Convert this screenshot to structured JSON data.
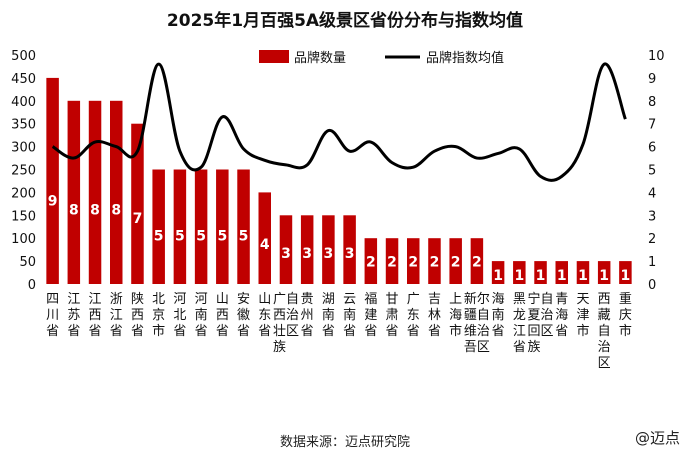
{
  "chart_data": {
    "type": "bar",
    "title": "2025年1月百强5A级景区省份分布与指数均值",
    "categories": [
      "四川省",
      "江苏省",
      "江西省",
      "浙江省",
      "陕西省",
      "北京市",
      "河北省",
      "河南省",
      "山西省",
      "安徽省",
      "山东省",
      "广西壮族自治区",
      "贵州省",
      "湖南省",
      "云南省",
      "福建省",
      "甘肃省",
      "广东省",
      "吉林省",
      "上海市",
      "新疆维吾尔自治区",
      "海南省",
      "黑龙江省",
      "宁夏回族自治区",
      "青海省",
      "天津市",
      "西藏自治区",
      "重庆市"
    ],
    "series": [
      {
        "name": "品牌数量",
        "type": "bar",
        "axis": "left",
        "color": "#c00000",
        "values": [
          9,
          8,
          8,
          8,
          7,
          5,
          5,
          5,
          5,
          5,
          4,
          3,
          3,
          3,
          3,
          2,
          2,
          2,
          2,
          2,
          2,
          1,
          1,
          1,
          1,
          1,
          1,
          1
        ],
        "data_labels": [
          "9",
          "8",
          "8",
          "8",
          "7",
          "5",
          "5",
          "5",
          "5",
          "5",
          "4",
          "3",
          "3",
          "3",
          "3",
          "2",
          "2",
          "2",
          "2",
          "2",
          "2",
          "1",
          "1",
          "1",
          "1",
          "1",
          "1",
          "1"
        ]
      },
      {
        "name": "品牌指数均值",
        "type": "line",
        "axis": "right",
        "color": "#000000",
        "values": [
          6.0,
          5.5,
          6.2,
          6.0,
          5.8,
          9.6,
          5.8,
          5.1,
          7.3,
          5.9,
          5.4,
          5.2,
          5.2,
          6.7,
          5.8,
          6.2,
          5.3,
          5.1,
          5.8,
          6.0,
          5.5,
          5.7,
          5.9,
          4.7,
          4.7,
          6.1,
          9.6,
          7.2
        ]
      }
    ],
    "y_left": {
      "ylim": [
        0,
        500
      ],
      "ticks": [
        "0",
        "50",
        "100",
        "150",
        "200",
        "250",
        "300",
        "350",
        "400",
        "450",
        "500"
      ]
    },
    "y_right": {
      "ylim": [
        0,
        10
      ],
      "ticks": [
        "0",
        "1",
        "2",
        "3",
        "4",
        "5",
        "6",
        "7",
        "8",
        "9",
        "10"
      ]
    },
    "legend_position": "top",
    "grid": false
  },
  "footer": {
    "source": "数据来源：迈点研究院"
  },
  "watermark": {
    "text": "@迈点"
  }
}
